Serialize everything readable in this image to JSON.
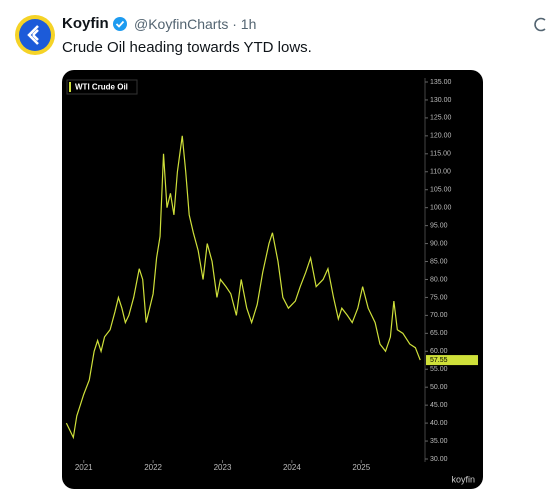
{
  "tweet": {
    "name": "Koyfin",
    "meta": "@KoyfinCharts · 1h",
    "text": "Crude Oil heading towards YTD lows.",
    "brand": "koyfin"
  },
  "chart_data": {
    "type": "line",
    "title": "WTI Crude Oil",
    "x": [
      2020.75,
      2020.8,
      2020.85,
      2020.9,
      2020.95,
      2021.0,
      2021.08,
      2021.15,
      2021.2,
      2021.25,
      2021.3,
      2021.38,
      2021.45,
      2021.5,
      2021.55,
      2021.6,
      2021.65,
      2021.72,
      2021.8,
      2021.85,
      2021.9,
      2021.95,
      2022.0,
      2022.05,
      2022.1,
      2022.15,
      2022.2,
      2022.25,
      2022.3,
      2022.35,
      2022.42,
      2022.47,
      2022.52,
      2022.58,
      2022.65,
      2022.72,
      2022.78,
      2022.85,
      2022.92,
      2022.97,
      2023.05,
      2023.12,
      2023.2,
      2023.27,
      2023.35,
      2023.42,
      2023.5,
      2023.58,
      2023.67,
      2023.72,
      2023.8,
      2023.87,
      2023.95,
      2024.05,
      2024.12,
      2024.2,
      2024.27,
      2024.35,
      2024.45,
      2024.52,
      2024.6,
      2024.67,
      2024.72,
      2024.8,
      2024.87,
      2024.95,
      2025.02,
      2025.1,
      2025.2,
      2025.27,
      2025.35,
      2025.42,
      2025.47,
      2025.52,
      2025.6,
      2025.7,
      2025.78,
      2025.85
    ],
    "series": [
      {
        "name": "WTI Crude Oil",
        "color": "#cfe03a",
        "values": [
          40,
          38,
          36,
          42,
          45,
          48,
          52,
          60,
          63,
          60,
          64,
          66,
          71,
          75,
          72,
          68,
          70,
          75,
          83,
          80,
          68,
          72,
          76,
          86,
          92,
          115,
          100,
          104,
          98,
          110,
          120,
          110,
          98,
          93,
          88,
          80,
          90,
          85,
          75,
          80,
          78,
          76,
          70,
          80,
          72,
          68,
          73,
          82,
          90,
          93,
          85,
          75,
          72,
          74,
          78,
          82,
          86,
          78,
          80,
          83,
          75,
          69,
          72,
          70,
          68,
          72,
          78,
          72,
          68,
          62,
          60,
          64,
          74,
          66,
          65,
          62,
          61,
          57.55
        ]
      }
    ],
    "xlim": [
      2020.73,
      2025.89
    ],
    "xticks": [
      2021,
      2022,
      2023,
      2024,
      2025
    ],
    "ylim": [
      30,
      135
    ],
    "yticks": [
      {
        "value": 30,
        "label": "30.00"
      },
      {
        "value": 35,
        "label": "35.00"
      },
      {
        "value": 40,
        "label": "40.00"
      },
      {
        "value": 45,
        "label": "45.00"
      },
      {
        "value": 50,
        "label": "50.00"
      },
      {
        "value": 55,
        "label": "55.00"
      },
      {
        "value": 60,
        "label": "60.00"
      },
      {
        "value": 65,
        "label": "65.00"
      },
      {
        "value": 70,
        "label": "70.00"
      },
      {
        "value": 75,
        "label": "75.00"
      },
      {
        "value": 80,
        "label": "80.00"
      },
      {
        "value": 85,
        "label": "85.00"
      },
      {
        "value": 90,
        "label": "90.00"
      },
      {
        "value": 95,
        "label": "95.00"
      },
      {
        "value": 100,
        "label": "100.00"
      },
      {
        "value": 105,
        "label": "105.00"
      },
      {
        "value": 110,
        "label": "110.00"
      },
      {
        "value": 115,
        "label": "115.00"
      },
      {
        "value": 120,
        "label": "120.00"
      },
      {
        "value": 125,
        "label": "125.00"
      },
      {
        "value": 130,
        "label": "130.00"
      },
      {
        "value": 135,
        "label": "135.00"
      }
    ],
    "grid": false
  }
}
